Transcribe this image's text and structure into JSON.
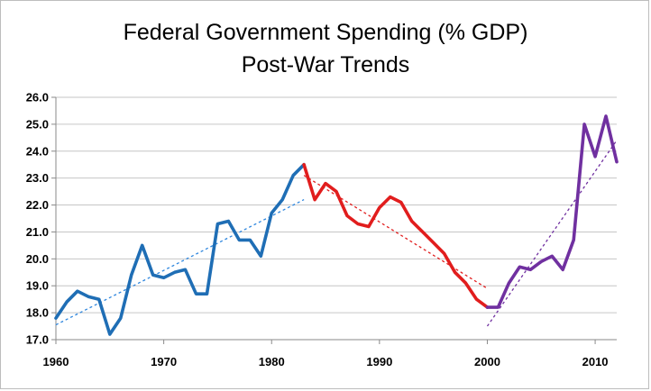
{
  "chart_data": {
    "type": "line",
    "title": "Federal Government Spending (% GDP)",
    "subtitle": "Post-War Trends",
    "xlabel": "",
    "ylabel": "",
    "xlim": [
      1960,
      2012
    ],
    "ylim": [
      17.0,
      26.0
    ],
    "y_ticks": [
      "17.0",
      "18.0",
      "19.0",
      "20.0",
      "21.0",
      "22.0",
      "23.0",
      "24.0",
      "25.0",
      "26.0"
    ],
    "x_ticks": [
      "1960",
      "1970",
      "1980",
      "1990",
      "2000",
      "2010"
    ],
    "grid": "horizontal",
    "legend": "none",
    "series": [
      {
        "color": "#1f6eb5",
        "x": [
          1960,
          1961,
          1962,
          1963,
          1964,
          1965,
          1966,
          1967,
          1968,
          1969,
          1970,
          1971,
          1972,
          1973,
          1974,
          1975,
          1976,
          1977,
          1978,
          1979,
          1980,
          1981,
          1982,
          1983
        ],
        "y": [
          17.8,
          18.4,
          18.8,
          18.6,
          18.5,
          17.2,
          17.8,
          19.4,
          20.5,
          19.4,
          19.3,
          19.5,
          19.6,
          18.7,
          18.7,
          21.3,
          21.4,
          20.7,
          20.7,
          20.1,
          21.7,
          22.2,
          23.1,
          23.5
        ]
      },
      {
        "color": "#e11d1d",
        "x": [
          1983,
          1984,
          1985,
          1986,
          1987,
          1988,
          1989,
          1990,
          1991,
          1992,
          1993,
          1994,
          1995,
          1996,
          1997,
          1998,
          1999,
          2000
        ],
        "y": [
          23.5,
          22.2,
          22.8,
          22.5,
          21.6,
          21.3,
          21.2,
          21.9,
          22.3,
          22.1,
          21.4,
          21.0,
          20.6,
          20.2,
          19.5,
          19.1,
          18.5,
          18.2
        ]
      },
      {
        "color": "#7030a0",
        "x": [
          2000,
          2001,
          2002,
          2003,
          2004,
          2005,
          2006,
          2007,
          2008,
          2009,
          2010,
          2011,
          2012
        ],
        "y": [
          18.2,
          18.2,
          19.1,
          19.7,
          19.6,
          19.9,
          20.1,
          19.6,
          20.7,
          25.0,
          23.8,
          25.3,
          23.6
        ]
      }
    ],
    "trendlines": [
      {
        "color": "#2e86de",
        "x": [
          1960,
          1983
        ],
        "y": [
          17.55,
          22.2
        ]
      },
      {
        "color": "#e11d1d",
        "x": [
          1983,
          2000
        ],
        "y": [
          23.1,
          18.9
        ]
      },
      {
        "color": "#7030a0",
        "x": [
          2000,
          2012
        ],
        "y": [
          17.5,
          24.4
        ]
      }
    ]
  }
}
